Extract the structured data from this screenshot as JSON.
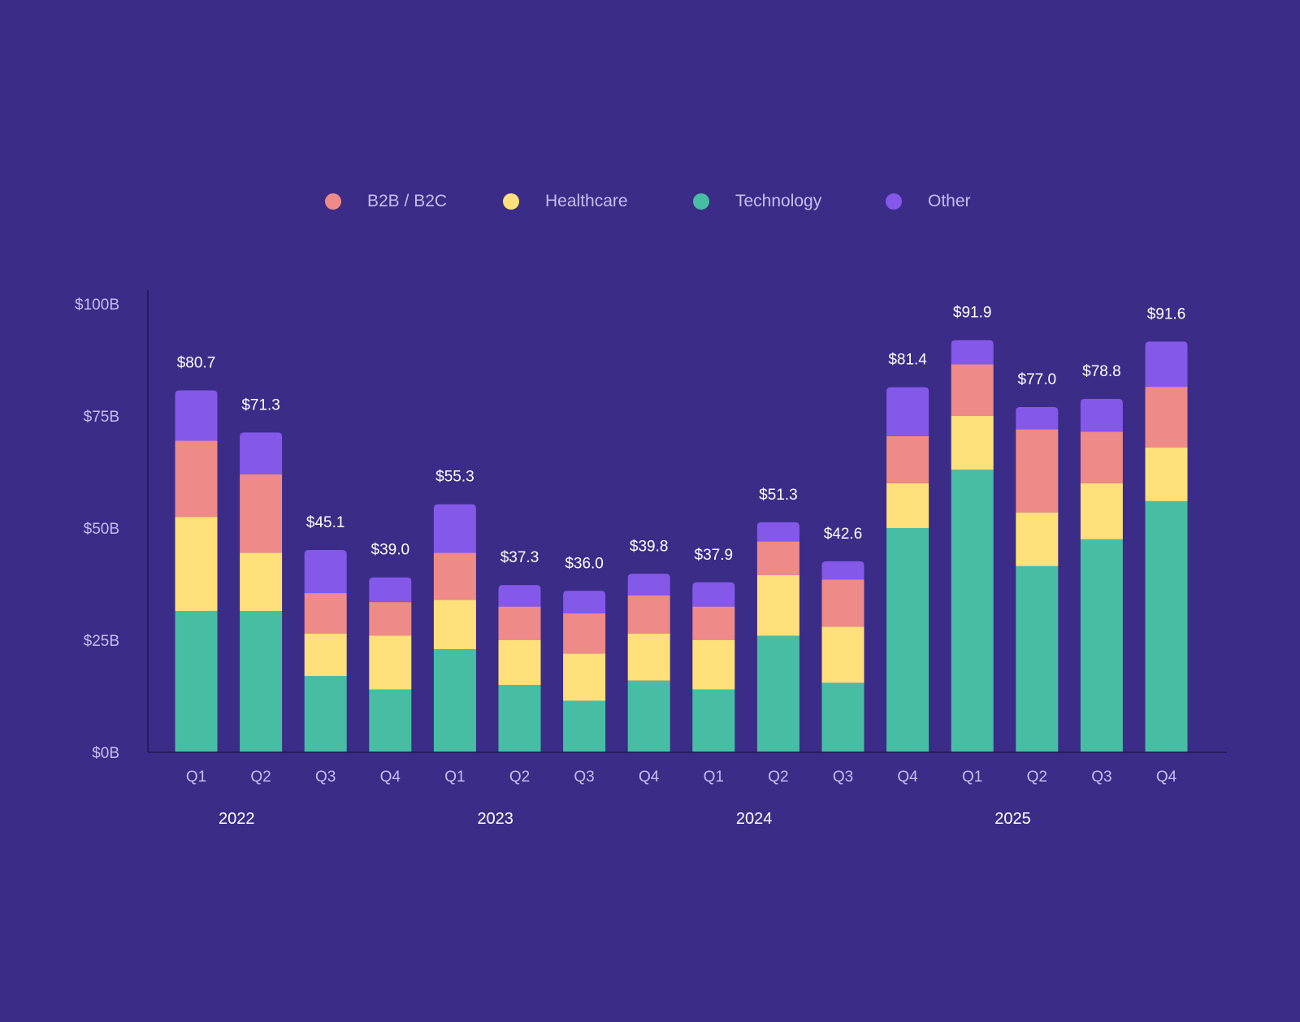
{
  "chart_data": {
    "type": "bar",
    "stacked": true,
    "title": "",
    "xlabel": "",
    "ylabel": "",
    "ylim": [
      0,
      100
    ],
    "y_ticks": [
      {
        "value": 0,
        "label": "$0B"
      },
      {
        "value": 25,
        "label": "$25B"
      },
      {
        "value": 50,
        "label": "$50B"
      },
      {
        "value": 75,
        "label": "$75B"
      },
      {
        "value": 100,
        "label": "$100B"
      }
    ],
    "categories": [
      "Q1",
      "Q2",
      "Q3",
      "Q4",
      "Q1",
      "Q2",
      "Q3",
      "Q4",
      "Q1",
      "Q2",
      "Q3",
      "Q4",
      "Q1",
      "Q2",
      "Q3",
      "Q4"
    ],
    "years": [
      {
        "label": "2022",
        "start": 0,
        "end": 3
      },
      {
        "label": "2023",
        "start": 4,
        "end": 7
      },
      {
        "label": "2024",
        "start": 8,
        "end": 11
      },
      {
        "label": "2025",
        "start": 12,
        "end": 15
      }
    ],
    "legend_placement": "top-center",
    "series": [
      {
        "name": "Technology",
        "color": "#47bea3",
        "values": [
          31.5,
          31.5,
          17,
          14,
          23,
          15,
          11.5,
          16,
          14,
          26,
          15.5,
          50,
          63,
          41.5,
          47.5,
          56
        ]
      },
      {
        "name": "Healthcare",
        "color": "#ffe07a",
        "values": [
          21,
          13,
          9.5,
          12,
          11,
          10,
          10.5,
          10.5,
          11,
          13.5,
          12.5,
          10,
          12,
          12,
          12.5,
          12
        ]
      },
      {
        "name": "B2B / B2C",
        "color": "#ee8a87",
        "values": [
          17,
          17.5,
          9,
          7.5,
          10.5,
          7.5,
          9,
          8.5,
          7.5,
          7.5,
          10.5,
          10.5,
          11.5,
          18.5,
          11.5,
          13.5
        ]
      },
      {
        "name": "Other",
        "color": "#8458e8",
        "values": [
          11.2,
          9.3,
          9.6,
          5.5,
          10.8,
          4.8,
          5,
          4.8,
          5.4,
          4.3,
          4.1,
          10.9,
          5.4,
          5,
          7.3,
          10.1
        ]
      }
    ],
    "totals": [
      "$80.7",
      "$71.3",
      "$45.1",
      "$39.0",
      "$55.3",
      "$37.3",
      "$36.0",
      "$39.8",
      "$37.9",
      "$51.3",
      "$42.6",
      "$81.4",
      "$91.9",
      "$77.0",
      "$78.8",
      "$91.6"
    ],
    "totals_values": [
      80.7,
      71.3,
      45.1,
      39.0,
      55.3,
      37.3,
      36.0,
      39.8,
      37.9,
      51.3,
      42.6,
      81.4,
      91.9,
      77.0,
      78.8,
      91.6
    ]
  },
  "legend": {
    "items": [
      {
        "label": "B2B / B2C",
        "color": "#ee8a87"
      },
      {
        "label": "Healthcare",
        "color": "#ffe07a"
      },
      {
        "label": "Technology",
        "color": "#47bea3"
      },
      {
        "label": "Other",
        "color": "#8458e8"
      }
    ]
  },
  "colors": {
    "background": "#3b2c88",
    "axis": "#1f1650",
    "muted_text": "#c7bdf0",
    "bright_text": "#ffffff"
  }
}
